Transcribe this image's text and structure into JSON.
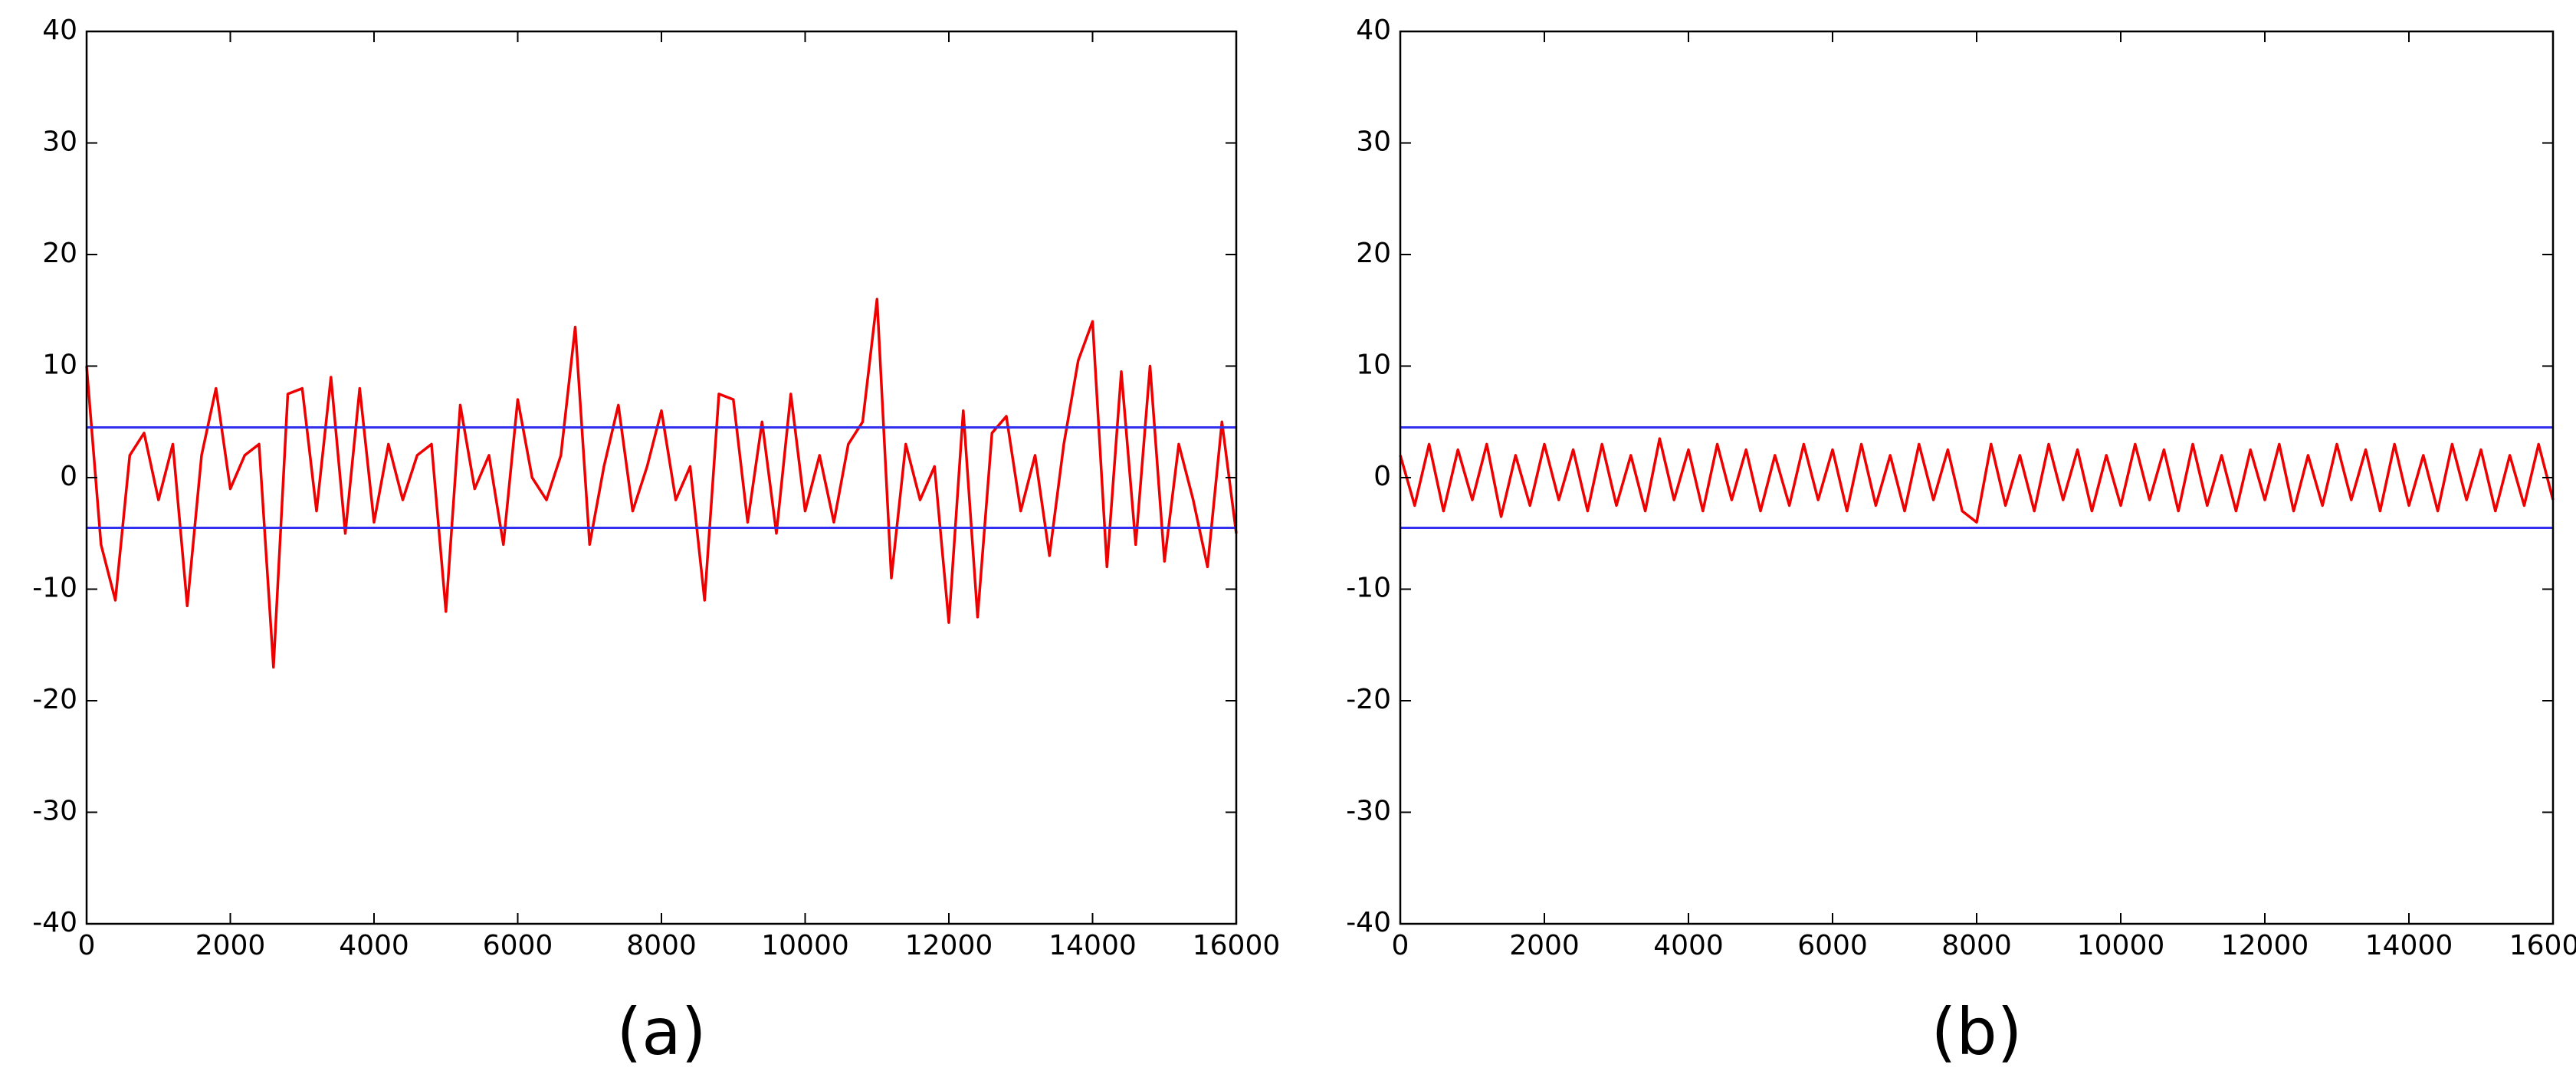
{
  "chart_data": [
    {
      "type": "line",
      "caption": "(a)",
      "xlim": [
        0,
        16000
      ],
      "ylim": [
        -40,
        40
      ],
      "xticks": [
        0,
        2000,
        4000,
        6000,
        8000,
        10000,
        12000,
        14000,
        16000
      ],
      "yticks": [
        -40,
        -30,
        -20,
        -10,
        0,
        10,
        20,
        30,
        40
      ],
      "series": [
        {
          "color": "#ee0000",
          "x": [
            0,
            200,
            400,
            600,
            800,
            1000,
            1200,
            1400,
            1600,
            1800,
            2000,
            2200,
            2400,
            2600,
            2800,
            3000,
            3200,
            3400,
            3600,
            3800,
            4000,
            4200,
            4400,
            4600,
            4800,
            5000,
            5200,
            5400,
            5600,
            5800,
            6000,
            6200,
            6400,
            6600,
            6800,
            7000,
            7200,
            7400,
            7600,
            7800,
            8000,
            8200,
            8400,
            8600,
            8800,
            9000,
            9200,
            9400,
            9600,
            9800,
            10000,
            10200,
            10400,
            10600,
            10800,
            11000,
            11200,
            11400,
            11600,
            11800,
            12000,
            12200,
            12400,
            12600,
            12800,
            13000,
            13200,
            13400,
            13600,
            13800,
            14000,
            14200,
            14400,
            14600,
            14800,
            15000,
            15200,
            15400,
            15600,
            15800,
            16000
          ],
          "values": [
            10,
            -6,
            -11,
            2,
            4,
            -2,
            3,
            -11.5,
            2,
            8,
            -1,
            2,
            3,
            -17,
            7.5,
            8,
            -3,
            9,
            -5,
            8,
            -4,
            3,
            -2,
            2,
            3,
            -12,
            6.5,
            -1,
            2,
            -6,
            7,
            0,
            -2,
            2,
            13.5,
            -6,
            1,
            6.5,
            -3,
            1,
            6,
            -2,
            1,
            -11,
            7.5,
            7,
            -4,
            5,
            -5,
            7.5,
            -3,
            2,
            -4,
            3,
            5,
            16,
            -9,
            3,
            -2,
            1,
            -13,
            6,
            -12.5,
            4,
            5.5,
            -3,
            2,
            -7,
            3,
            10.5,
            14,
            -8,
            9.5,
            -6,
            10,
            -7.5,
            3,
            -2,
            -8,
            5,
            -5
          ]
        },
        {
          "color": "#3030ee",
          "x": [
            0,
            16000
          ],
          "values": [
            4.5,
            4.5
          ]
        },
        {
          "color": "#3030ee",
          "x": [
            0,
            16000
          ],
          "values": [
            -4.5,
            -4.5
          ]
        }
      ]
    },
    {
      "type": "line",
      "caption": "(b)",
      "xlim": [
        0,
        16000
      ],
      "ylim": [
        -40,
        40
      ],
      "xticks": [
        0,
        2000,
        4000,
        6000,
        8000,
        10000,
        12000,
        14000,
        16000
      ],
      "yticks": [
        -40,
        -30,
        -20,
        -10,
        0,
        10,
        20,
        30,
        40
      ],
      "series": [
        {
          "color": "#ee0000",
          "x": [
            0,
            200,
            400,
            600,
            800,
            1000,
            1200,
            1400,
            1600,
            1800,
            2000,
            2200,
            2400,
            2600,
            2800,
            3000,
            3200,
            3400,
            3600,
            3800,
            4000,
            4200,
            4400,
            4600,
            4800,
            5000,
            5200,
            5400,
            5600,
            5800,
            6000,
            6200,
            6400,
            6600,
            6800,
            7000,
            7200,
            7400,
            7600,
            7800,
            8000,
            8200,
            8400,
            8600,
            8800,
            9000,
            9200,
            9400,
            9600,
            9800,
            10000,
            10200,
            10400,
            10600,
            10800,
            11000,
            11200,
            11400,
            11600,
            11800,
            12000,
            12200,
            12400,
            12600,
            12800,
            13000,
            13200,
            13400,
            13600,
            13800,
            14000,
            14200,
            14400,
            14600,
            14800,
            15000,
            15200,
            15400,
            15600,
            15800,
            16000
          ],
          "values": [
            2,
            -2.5,
            3,
            -3,
            2.5,
            -2,
            3,
            -3.5,
            2,
            -2.5,
            3,
            -2,
            2.5,
            -3,
            3,
            -2.5,
            2,
            -3,
            3.5,
            -2,
            2.5,
            -3,
            3,
            -2,
            2.5,
            -3,
            2,
            -2.5,
            3,
            -2,
            2.5,
            -3,
            3,
            -2.5,
            2,
            -3,
            3,
            -2,
            2.5,
            -3,
            -4,
            3,
            -2.5,
            2,
            -3,
            3,
            -2,
            2.5,
            -3,
            2,
            -2.5,
            3,
            -2,
            2.5,
            -3,
            3,
            -2.5,
            2,
            -3,
            2.5,
            -2,
            3,
            -3,
            2,
            -2.5,
            3,
            -2,
            2.5,
            -3,
            3,
            -2.5,
            2,
            -3,
            3,
            -2,
            2.5,
            -3,
            2,
            -2.5,
            3,
            -2
          ]
        },
        {
          "color": "#3030ee",
          "x": [
            0,
            16000
          ],
          "values": [
            4.5,
            4.5
          ]
        },
        {
          "color": "#3030ee",
          "x": [
            0,
            16000
          ],
          "values": [
            -4.5,
            -4.5
          ]
        }
      ]
    }
  ]
}
